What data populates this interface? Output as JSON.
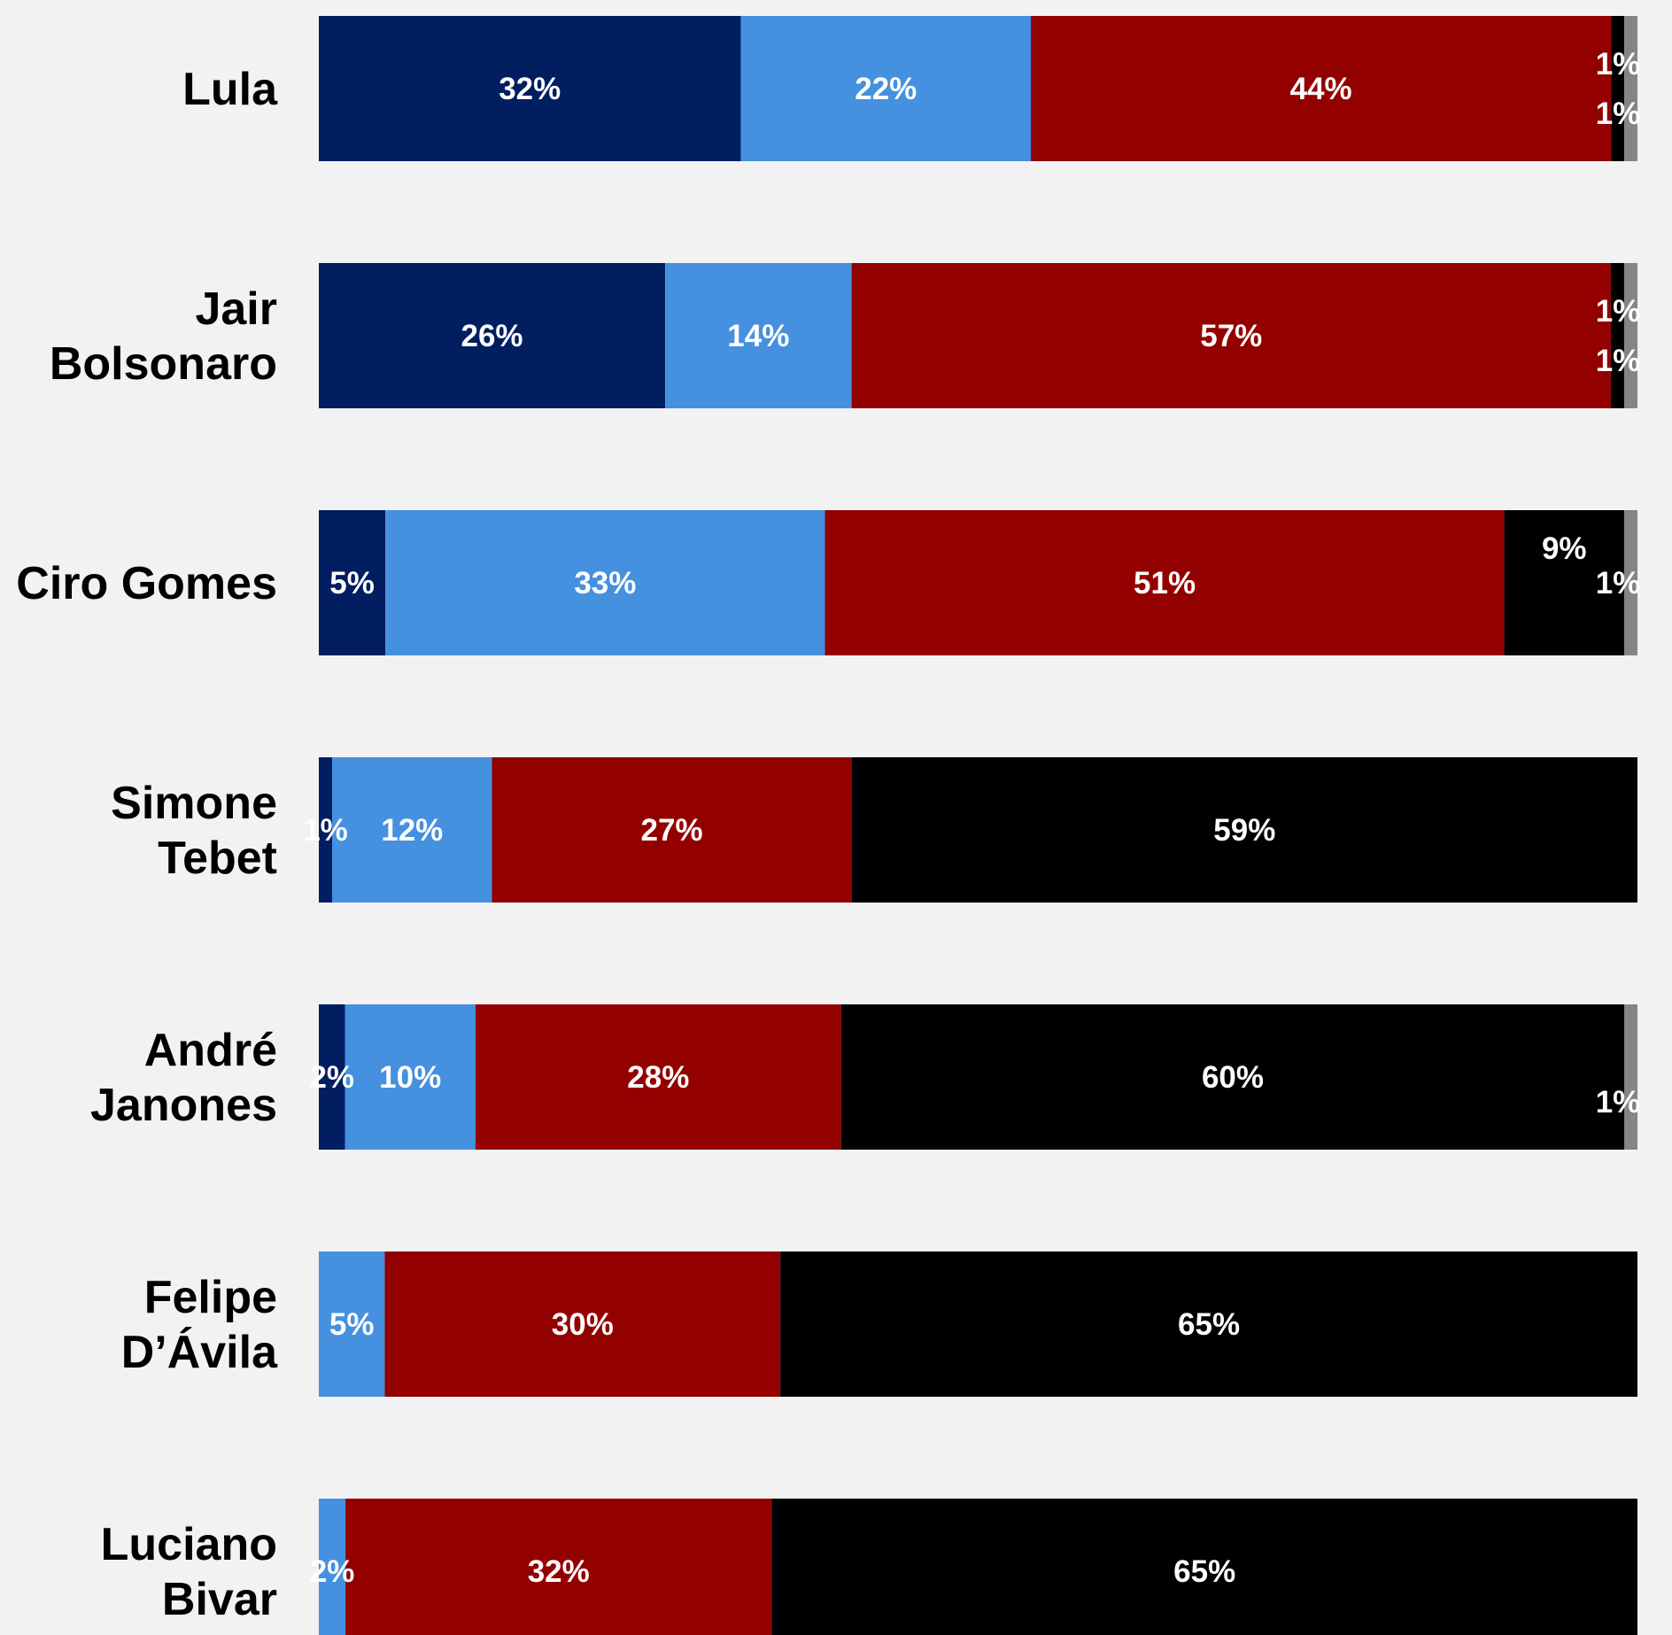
{
  "chart_data": {
    "type": "bar",
    "orientation": "horizontal",
    "stacked": true,
    "normalized": true,
    "title": "",
    "xlabel": "",
    "ylabel": "",
    "xlim": [
      0,
      100
    ],
    "grid": false,
    "legend": "none",
    "background_color": "#f2f2f2",
    "categories": [
      "Lula",
      "Jair Bolsonaro",
      "Ciro Gomes",
      "Simone Tebet",
      "André Janones",
      "Felipe D’Ávila",
      "Luciano Bivar"
    ],
    "category_label_lines": [
      [
        "Lula"
      ],
      [
        "Jair",
        "Bolsonaro"
      ],
      [
        "Ciro Gomes"
      ],
      [
        "Simone",
        "Tebet"
      ],
      [
        "André",
        "Janones"
      ],
      [
        "Felipe",
        "D’Ávila"
      ],
      [
        "Luciano",
        "Bivar"
      ]
    ],
    "series": [
      {
        "color": "#001e60",
        "values": [
          32,
          26,
          5,
          1,
          2,
          0,
          0
        ]
      },
      {
        "color": "#4590df",
        "values": [
          22,
          14,
          33,
          12,
          10,
          5,
          2
        ]
      },
      {
        "color": "#930000",
        "values": [
          44,
          57,
          51,
          27,
          28,
          30,
          32
        ]
      },
      {
        "color": "#000000",
        "values": [
          1,
          1,
          9,
          59,
          60,
          65,
          65
        ]
      },
      {
        "color": "#858585",
        "values": [
          1,
          1,
          1,
          0,
          1,
          0,
          0
        ]
      }
    ],
    "data_labels": [
      [
        "32%",
        "22%",
        "44%",
        "1%",
        "1%"
      ],
      [
        "26%",
        "14%",
        "57%",
        "1%",
        "1%"
      ],
      [
        "5%",
        "33%",
        "51%",
        "9%",
        "1%"
      ],
      [
        "1%",
        "12%",
        "27%",
        "59%",
        ""
      ],
      [
        "2%",
        "10%",
        "28%",
        "60%",
        "1%"
      ],
      [
        "",
        "5%",
        "30%",
        "65%",
        ""
      ],
      [
        "",
        "2%",
        "32%",
        "65%",
        ""
      ]
    ]
  }
}
